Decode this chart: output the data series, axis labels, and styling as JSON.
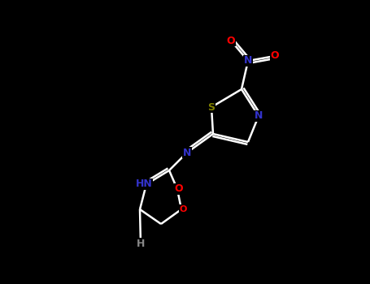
{
  "background_color": "#000000",
  "atom_colors": {
    "N": "#3333cc",
    "O": "#ff0000",
    "S": "#808000",
    "H": "#888888"
  },
  "bond_lw": 1.8,
  "font_size": 9
}
